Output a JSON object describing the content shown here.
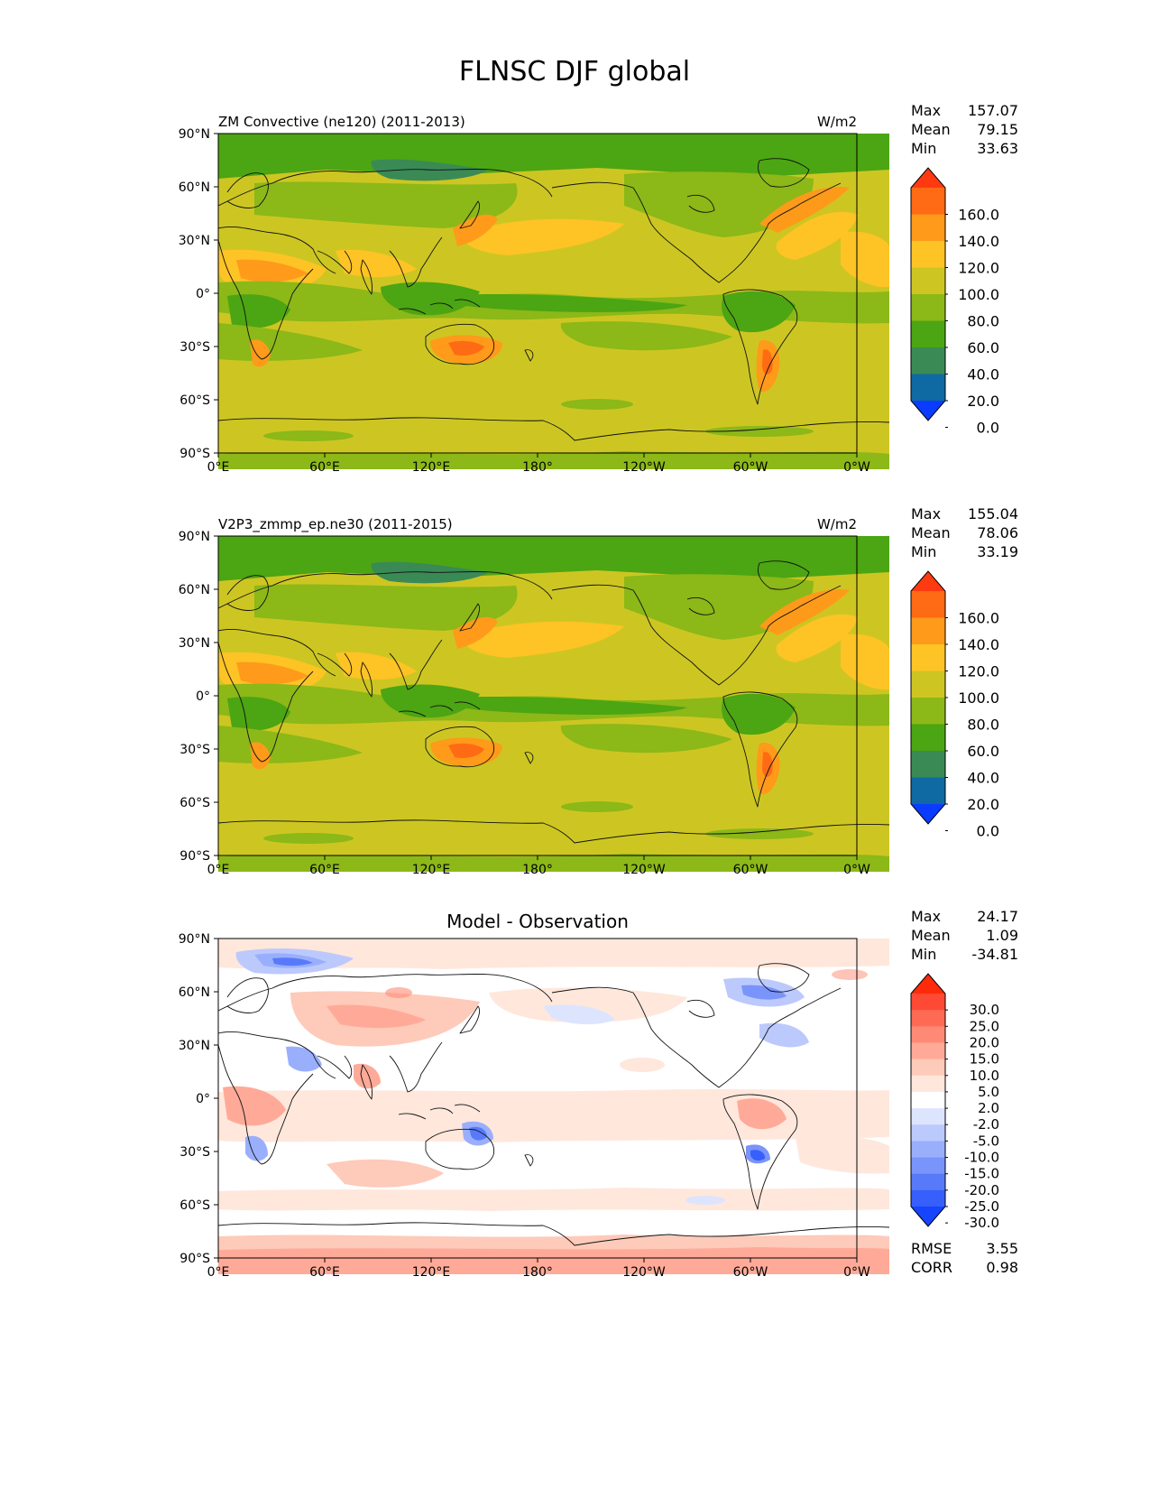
{
  "figure": {
    "title": "FLNSC DJF global"
  },
  "xticks": [
    "0°E",
    "60°E",
    "120°E",
    "180°",
    "120°W",
    "60°W",
    "0°W"
  ],
  "yticks": [
    "90°N",
    "60°N",
    "30°N",
    "0°",
    "30°S",
    "60°S",
    "90°S"
  ],
  "panels": [
    {
      "title_left": "ZM Convective (ne120) (2011-2013)",
      "title_center": "",
      "units": "W/m2",
      "stats": {
        "max_label": "Max",
        "max": "157.07",
        "mean_label": "Mean",
        "mean": "79.15",
        "min_label": "Min",
        "min": "33.63"
      },
      "colorbar": {
        "levels": [
          "160.0",
          "140.0",
          "120.0",
          "100.0",
          "80.0",
          "60.0",
          "40.0",
          "20.0",
          "0.0"
        ],
        "colors": [
          "#ff3a10",
          "#ff6a14",
          "#ff9a1a",
          "#fec325",
          "#cdc622",
          "#8cb818",
          "#4ca512",
          "#3a8a55",
          "#0f6aa3",
          "#0a3cff"
        ]
      }
    },
    {
      "title_left": "V2P3_zmmp_ep.ne30 (2011-2015)",
      "title_center": "",
      "units": "W/m2",
      "stats": {
        "max_label": "Max",
        "max": "155.04",
        "mean_label": "Mean",
        "mean": "78.06",
        "min_label": "Min",
        "min": "33.19"
      },
      "colorbar": {
        "levels": [
          "160.0",
          "140.0",
          "120.0",
          "100.0",
          "80.0",
          "60.0",
          "40.0",
          "20.0",
          "0.0"
        ],
        "colors": [
          "#ff3a10",
          "#ff6a14",
          "#ff9a1a",
          "#fec325",
          "#cdc622",
          "#8cb818",
          "#4ca512",
          "#3a8a55",
          "#0f6aa3",
          "#0a3cff"
        ]
      }
    },
    {
      "title_left": "",
      "title_center": "Model - Observation",
      "units": "",
      "stats": {
        "max_label": "Max",
        "max": "24.17",
        "mean_label": "Mean",
        "mean": "1.09",
        "min_label": "Min",
        "min": "-34.81"
      },
      "colorbar": {
        "levels": [
          "30.0",
          "25.0",
          "20.0",
          "15.0",
          "10.0",
          "5.0",
          "2.0",
          "-2.0",
          "-5.0",
          "-10.0",
          "-15.0",
          "-20.0",
          "-25.0",
          "-30.0"
        ],
        "colors": [
          "#ff2a0a",
          "#fe4a34",
          "#ff6a55",
          "#fe8a76",
          "#ffaa98",
          "#fecaba",
          "#ffe7dc",
          "#ffffff",
          "#dde4fe",
          "#bcc9fd",
          "#9aaffc",
          "#7994fb",
          "#587afa",
          "#375ffb",
          "#1545fe"
        ]
      },
      "rmse_label": "RMSE",
      "rmse": "3.55",
      "corr_label": "CORR",
      "corr": "0.98"
    }
  ],
  "chart_data": [
    {
      "type": "heatmap",
      "title": "ZM Convective (ne120) (2011-2013)",
      "units": "W/m2",
      "xlim": [
        0,
        360
      ],
      "ylim": [
        -90,
        90
      ],
      "contour_levels": [
        0,
        20,
        40,
        60,
        80,
        100,
        120,
        140,
        160
      ],
      "stats": {
        "max": 157.07,
        "mean": 79.15,
        "min": 33.63
      }
    },
    {
      "type": "heatmap",
      "title": "V2P3_zmmp_ep.ne30 (2011-2015)",
      "units": "W/m2",
      "xlim": [
        0,
        360
      ],
      "ylim": [
        -90,
        90
      ],
      "contour_levels": [
        0,
        20,
        40,
        60,
        80,
        100,
        120,
        140,
        160
      ],
      "stats": {
        "max": 155.04,
        "mean": 78.06,
        "min": 33.19
      }
    },
    {
      "type": "heatmap",
      "title": "Model - Observation",
      "xlim": [
        0,
        360
      ],
      "ylim": [
        -90,
        90
      ],
      "contour_levels": [
        -30,
        -25,
        -20,
        -15,
        -10,
        -5,
        -2,
        2,
        5,
        10,
        15,
        20,
        25,
        30
      ],
      "stats": {
        "max": 24.17,
        "mean": 1.09,
        "min": -34.81,
        "rmse": 3.55,
        "corr": 0.98
      }
    }
  ]
}
